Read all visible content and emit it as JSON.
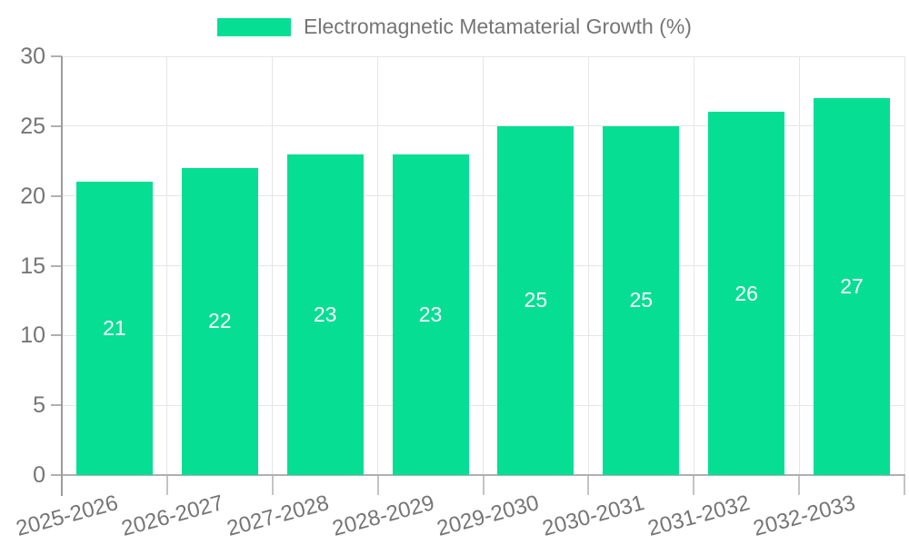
{
  "legend": {
    "label": "Electromagnetic Metamaterial Growth (%)"
  },
  "colors": {
    "bar": "#06de94",
    "bar_label": "#ffffff",
    "axis_text": "#757575",
    "grid": "#e6e6e6",
    "axis_line": "#b0b0b0"
  },
  "chart_data": {
    "type": "bar",
    "title": "Electromagnetic Metamaterial Growth (%)",
    "series_name": "Electromagnetic Metamaterial Growth (%)",
    "categories": [
      "2025-2026",
      "2026-2027",
      "2027-2028",
      "2028-2029",
      "2029-2030",
      "2030-2031",
      "2031-2032",
      "2032-2033"
    ],
    "values": [
      21,
      22,
      23,
      23,
      25,
      25,
      26,
      27
    ],
    "xlabel": "",
    "ylabel": "",
    "ylim": [
      0,
      30
    ],
    "yticks": [
      0,
      5,
      10,
      15,
      20,
      25,
      30
    ],
    "grid": true,
    "legend_position": "top",
    "value_labels": "inside-center"
  }
}
